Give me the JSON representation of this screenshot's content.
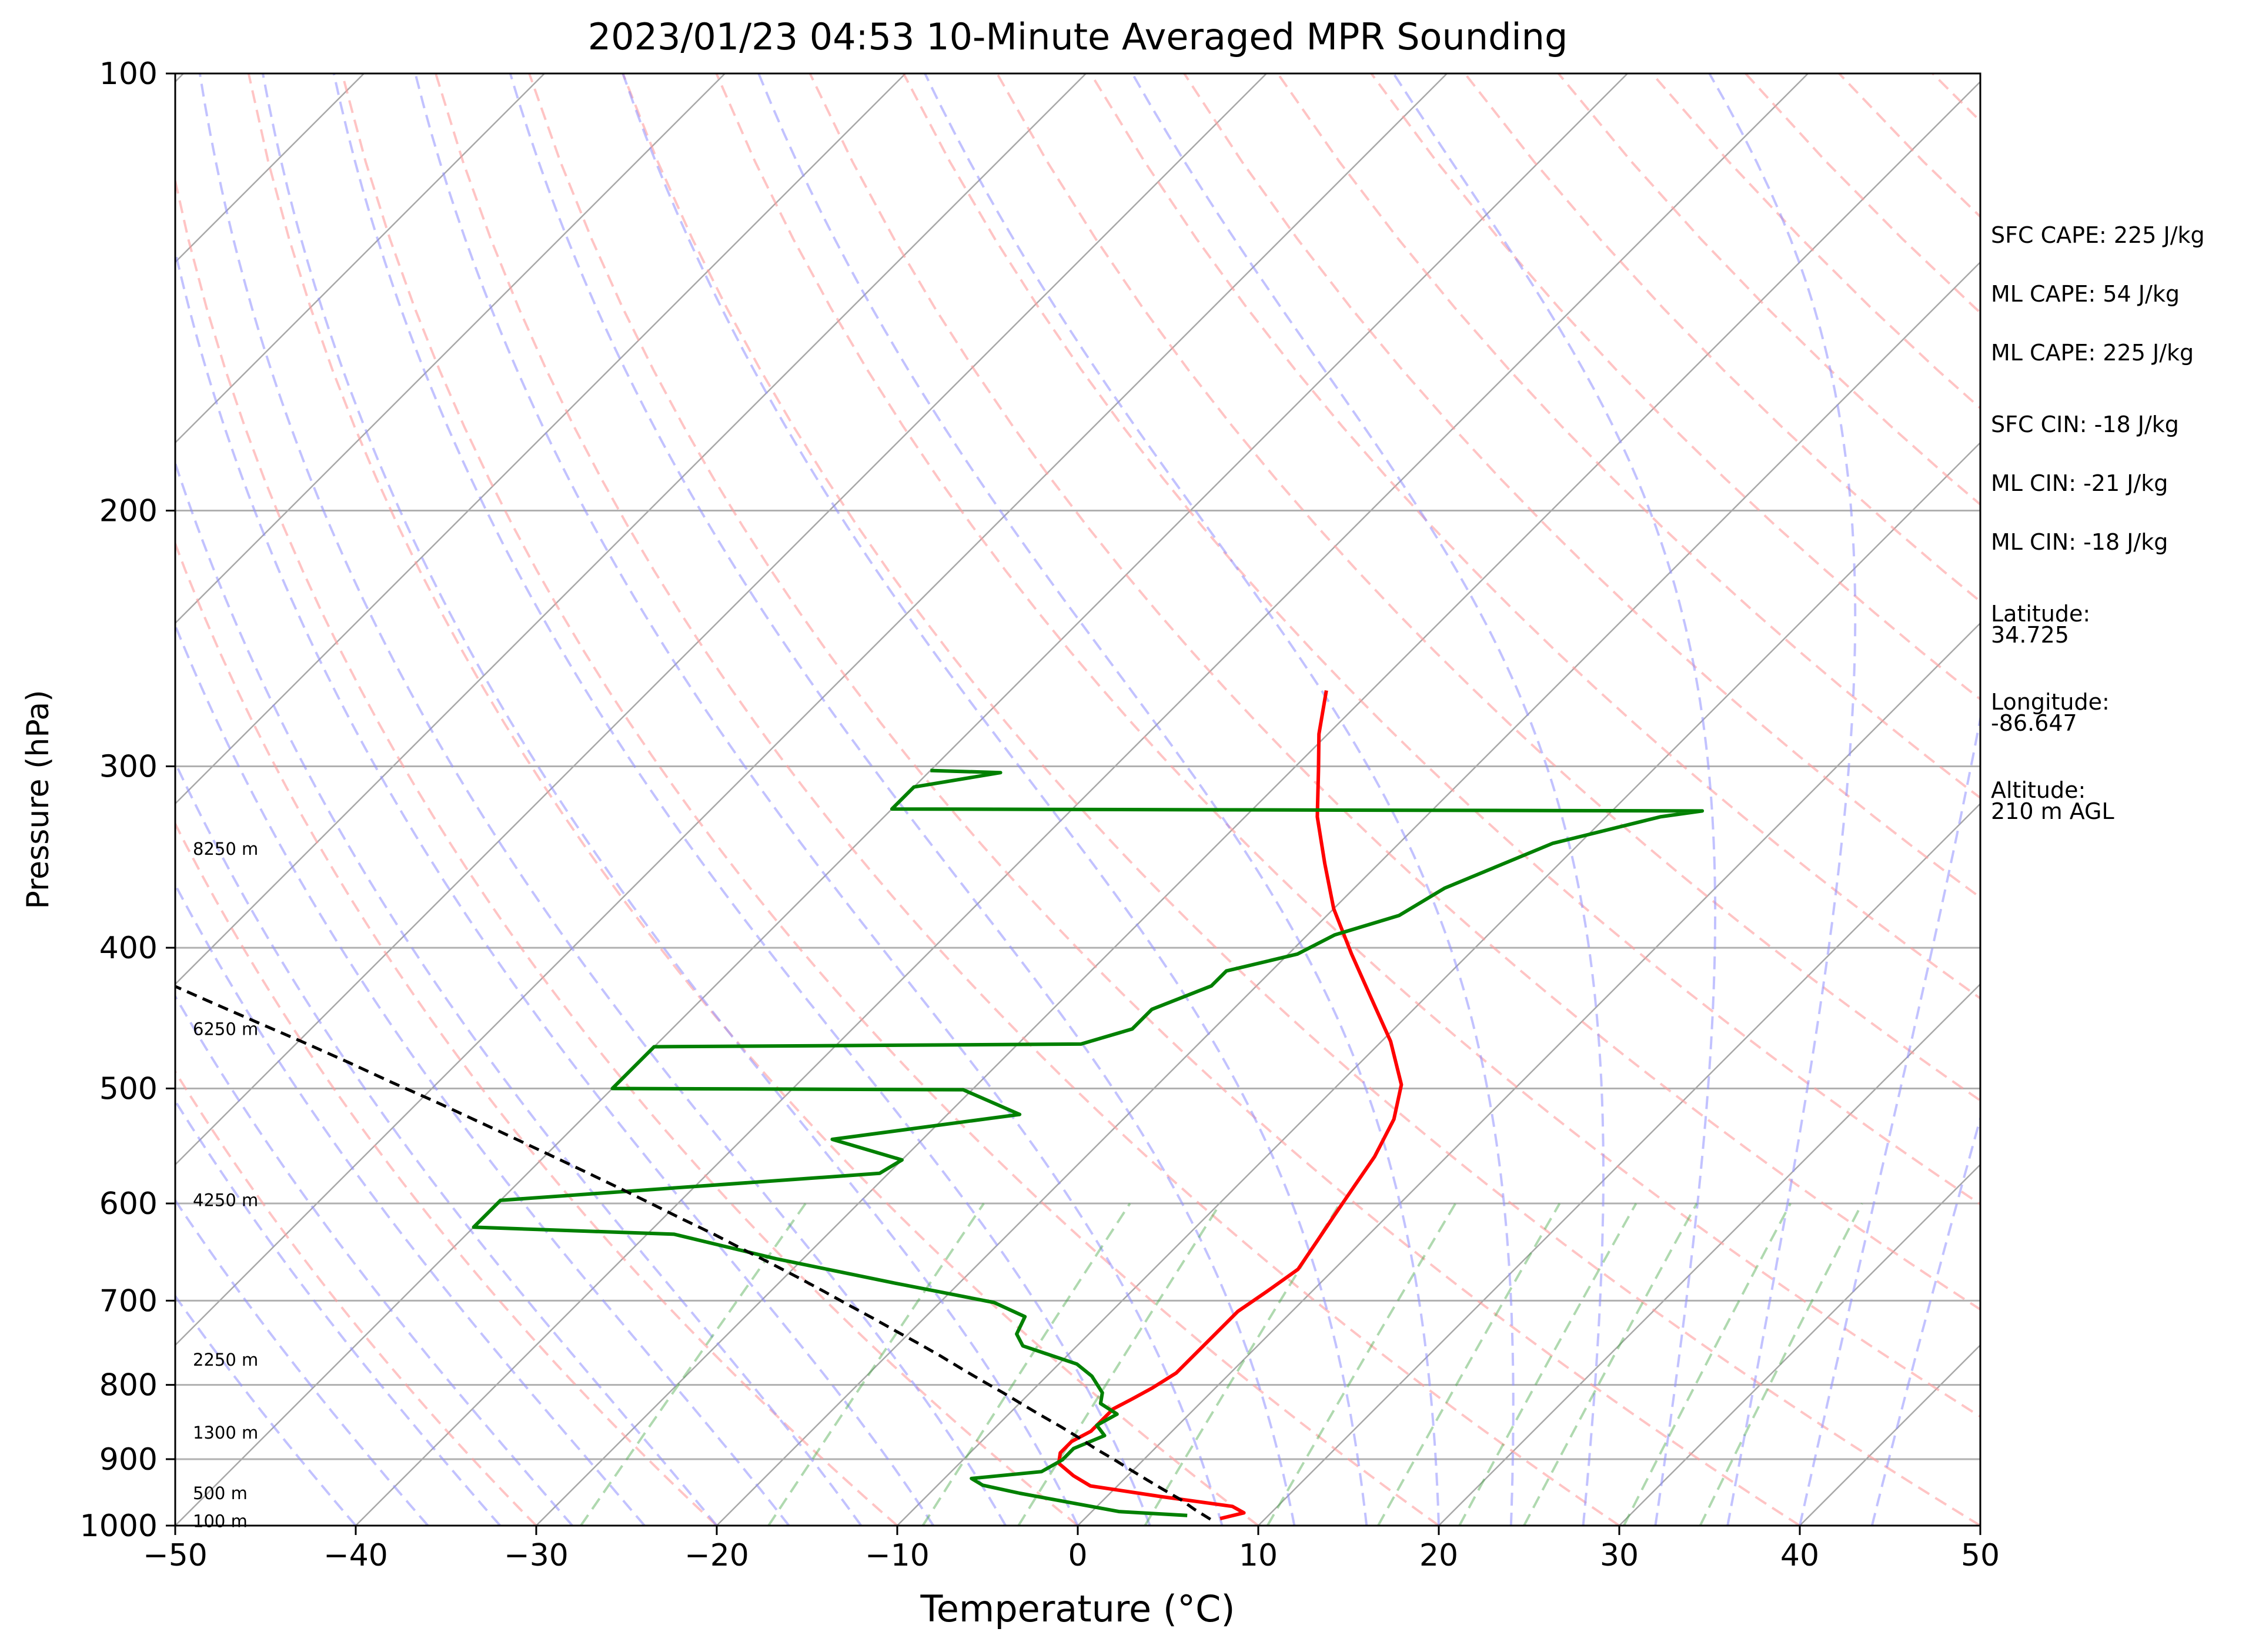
{
  "chart_data": {
    "type": "line",
    "chart_kind": "skew-t log-p sounding",
    "title": "2023/01/23 04:53 10-Minute Averaged MPR Sounding",
    "xlabel": "Temperature (°C)",
    "ylabel": "Pressure (hPa)",
    "xlim": [
      -50,
      50
    ],
    "ylim": [
      1000,
      100
    ],
    "y_scale": "log",
    "skew": 45,
    "grid": true,
    "x_ticks": [
      "−50",
      "−40",
      "−30",
      "−20",
      "−10",
      "0",
      "10",
      "20",
      "30",
      "40",
      "50"
    ],
    "y_ticks": [
      "100",
      "200",
      "300",
      "400",
      "500",
      "600",
      "700",
      "800",
      "900",
      "1000"
    ],
    "height_labels": [
      {
        "text": "100 m",
        "p": 993
      },
      {
        "text": "500 m",
        "p": 950
      },
      {
        "text": "1300 m",
        "p": 863
      },
      {
        "text": "2250 m",
        "p": 769
      },
      {
        "text": "4250 m",
        "p": 597
      },
      {
        "text": "6250 m",
        "p": 455
      },
      {
        "text": "8250 m",
        "p": 342
      }
    ],
    "series": [
      {
        "color": "#ff0000",
        "style": "solid",
        "points": [
          [
            7.5,
            989
          ],
          [
            8.5,
            980
          ],
          [
            7.5,
            970
          ],
          [
            3.0,
            955
          ],
          [
            -1.5,
            939
          ],
          [
            -3.0,
            924
          ],
          [
            -4.5,
            906
          ],
          [
            -5.0,
            891
          ],
          [
            -5.0,
            875
          ],
          [
            -4.5,
            861
          ],
          [
            -4.5,
            846
          ],
          [
            -4.5,
            831
          ],
          [
            -4.0,
            818
          ],
          [
            -3.5,
            804
          ],
          [
            -3.0,
            785
          ],
          [
            -3.0,
            762
          ],
          [
            -3.0,
            737
          ],
          [
            -3.0,
            712
          ],
          [
            -2.5,
            690
          ],
          [
            -2.0,
            666
          ],
          [
            -2.5,
            637
          ],
          [
            -3.0,
            610
          ],
          [
            -3.5,
            583
          ],
          [
            -4.0,
            557
          ],
          [
            -5.0,
            525
          ],
          [
            -6.5,
            497
          ],
          [
            -9.5,
            464
          ],
          [
            -13.0,
            433
          ],
          [
            -16.5,
            404
          ],
          [
            -20.0,
            376
          ],
          [
            -23.0,
            350
          ],
          [
            -26.0,
            325
          ],
          [
            -28.5,
            302
          ],
          [
            -30.5,
            285
          ],
          [
            -32.5,
            266
          ]
        ]
      },
      {
        "color": "#008000",
        "style": "solid",
        "points": [
          [
            5.5,
            984
          ],
          [
            1.5,
            978
          ],
          [
            -5.0,
            950
          ],
          [
            -7.5,
            938
          ],
          [
            -8.5,
            928
          ],
          [
            -5.0,
            918
          ],
          [
            -4.5,
            901
          ],
          [
            -4.5,
            885
          ],
          [
            -3.5,
            867
          ],
          [
            -4.5,
            853
          ],
          [
            -4.0,
            838
          ],
          [
            -5.5,
            824
          ],
          [
            -6.0,
            810
          ],
          [
            -7.5,
            789
          ],
          [
            -9.0,
            774
          ],
          [
            -13.0,
            752
          ],
          [
            -14.0,
            738
          ],
          [
            -14.5,
            718
          ],
          [
            -17.0,
            702
          ],
          [
            -23.5,
            681
          ],
          [
            -31.5,
            655
          ],
          [
            -38.5,
            630
          ],
          [
            -50,
            623
          ],
          [
            -50,
            597
          ],
          [
            -30.5,
            572
          ],
          [
            -30.0,
            560
          ],
          [
            -35.0,
            542
          ],
          [
            -26.0,
            521
          ],
          [
            -30.5,
            501
          ],
          [
            -50,
            500
          ],
          [
            -50,
            468
          ],
          [
            -26.5,
            466
          ],
          [
            -24.5,
            455
          ],
          [
            -24.5,
            441
          ],
          [
            -22.5,
            425
          ],
          [
            -22.5,
            415
          ],
          [
            -19.5,
            404
          ],
          [
            -18.5,
            392
          ],
          [
            -16.0,
            380
          ],
          [
            -15.0,
            364
          ],
          [
            -11.5,
            339
          ],
          [
            -7.0,
            325
          ],
          [
            -5.0,
            322
          ],
          [
            -50,
            321
          ],
          [
            -50,
            310
          ],
          [
            -46.0,
            303
          ],
          [
            -50,
            302
          ]
        ]
      },
      {
        "color": "#000000",
        "style": "dashed",
        "points": [
          [
            7.0,
            990
          ],
          [
            5.6,
            975
          ],
          [
            4.3,
            960
          ],
          [
            2.8,
            945
          ],
          [
            1.3,
            930
          ],
          [
            -0.2,
            915
          ],
          [
            -1.7,
            900
          ],
          [
            -3.3,
            885
          ],
          [
            -4.8,
            870
          ],
          [
            -6.4,
            855
          ],
          [
            -8.1,
            840
          ],
          [
            -9.8,
            825
          ],
          [
            -11.5,
            810
          ],
          [
            -13.3,
            795
          ],
          [
            -15.1,
            780
          ],
          [
            -16.9,
            765
          ],
          [
            -18.8,
            750
          ],
          [
            -20.8,
            735
          ],
          [
            -22.8,
            720
          ],
          [
            -24.9,
            705
          ],
          [
            -27.0,
            690
          ],
          [
            -29.2,
            675
          ],
          [
            -31.5,
            660
          ],
          [
            -33.9,
            645
          ],
          [
            -36.3,
            630
          ],
          [
            -38.9,
            615
          ],
          [
            -41.5,
            600
          ],
          [
            -44.2,
            585
          ],
          [
            -47.0,
            570
          ],
          [
            -49.9,
            555
          ],
          [
            -52.9,
            540
          ],
          [
            -56.0,
            525
          ],
          [
            -59.2,
            510
          ],
          [
            -62.6,
            495
          ],
          [
            -66.0,
            480
          ],
          [
            -69.6,
            465
          ],
          [
            -73.4,
            450
          ],
          [
            -77.3,
            435
          ],
          [
            -81.3,
            420
          ],
          [
            -85.5,
            405
          ],
          [
            -89.9,
            390
          ],
          [
            -94.5,
            375
          ],
          [
            -99.3,
            360
          ],
          [
            -104.3,
            345
          ],
          [
            -109.6,
            330
          ],
          [
            -115.1,
            315
          ],
          [
            -120.8,
            300
          ],
          [
            -126.9,
            285
          ],
          [
            -133.2,
            270
          ],
          [
            -139.9,
            255
          ]
        ]
      }
    ],
    "stats": {
      "sfc_cape": "SFC CAPE: 225 J/kg",
      "ml_cape_1": "ML CAPE: 54 J/kg",
      "ml_cape_2": "ML CAPE: 225 J/kg",
      "sfc_cin": "SFC CIN: -18 J/kg",
      "ml_cin_1": "ML CIN: -21 J/kg",
      "ml_cin_2": "ML CIN: -18 J/kg",
      "latitude_label": "Latitude:",
      "latitude_value": "34.725",
      "longitude_label": "Longitude:",
      "longitude_value": "-86.647",
      "altitude_label": "Altitude:",
      "altitude_value": "210 m AGL"
    }
  }
}
